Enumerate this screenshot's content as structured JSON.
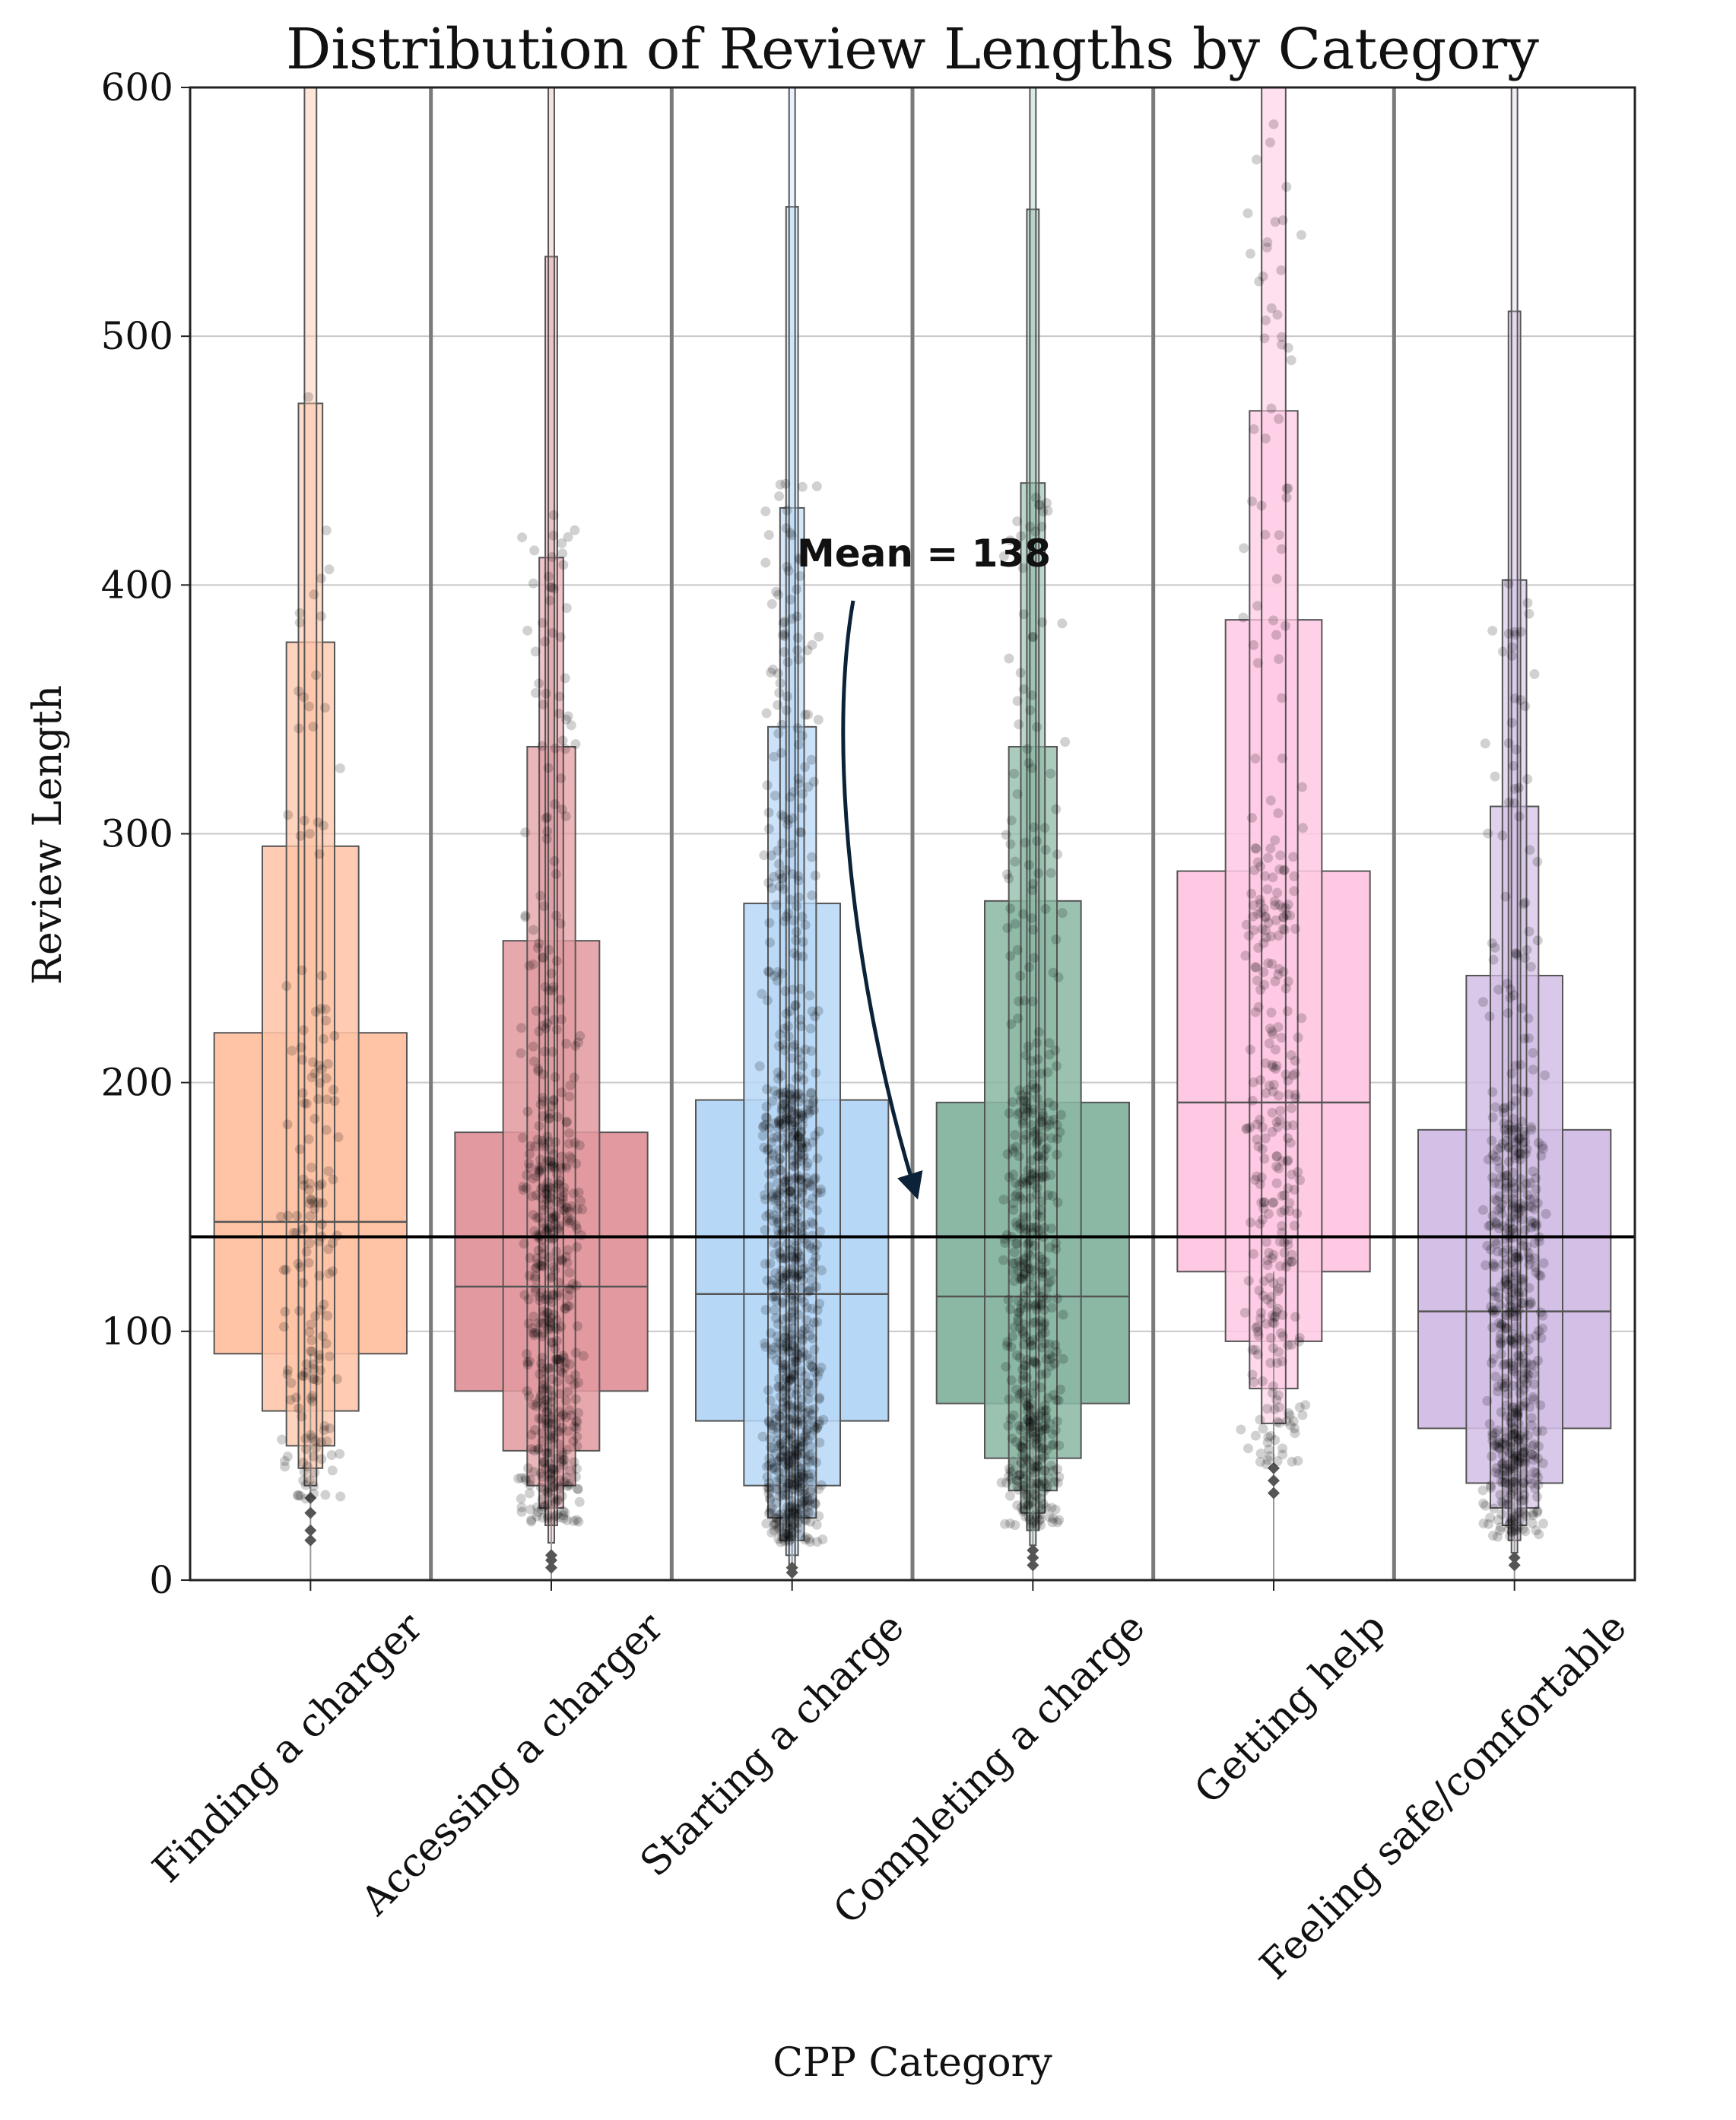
{
  "chart_data": {
    "type": "boxen",
    "title": "Distribution of Review Lengths by Category",
    "xlabel": "CPP Category",
    "ylabel": "Review Length",
    "ylim": [
      0,
      600
    ],
    "yticks": [
      0,
      100,
      200,
      300,
      400,
      500,
      600
    ],
    "grid": "horizontal",
    "categories": [
      "Finding a charger",
      "Accessing a charger",
      "Starting a charge",
      "Completing a charge",
      "Getting help",
      "Feeling safe/comfortable"
    ],
    "series": [
      {
        "name": "Finding a charger",
        "color": "#FFC4A6",
        "median": 144,
        "levels": [
          [
            91,
            220
          ],
          [
            68,
            295
          ],
          [
            54,
            377
          ],
          [
            45,
            473
          ],
          [
            38,
            600
          ]
        ],
        "point_count": 170,
        "outliers": [
          16,
          20,
          27,
          33
        ]
      },
      {
        "name": "Accessing a charger",
        "color": "#E29AA0",
        "median": 118,
        "levels": [
          [
            76,
            180
          ],
          [
            52,
            257
          ],
          [
            38,
            335
          ],
          [
            29,
            411
          ],
          [
            22,
            532
          ],
          [
            15,
            600
          ]
        ],
        "point_count": 520,
        "outliers": [
          5,
          8,
          10
        ]
      },
      {
        "name": "Starting a charge",
        "color": "#B7D7F7",
        "median": 115,
        "levels": [
          [
            64,
            193
          ],
          [
            38,
            272
          ],
          [
            25,
            343
          ],
          [
            16,
            431
          ],
          [
            10,
            552
          ],
          [
            6,
            600
          ]
        ],
        "point_count": 880,
        "outliers": [
          3,
          5
        ]
      },
      {
        "name": "Completing a charge",
        "color": "#8AB8A4",
        "median": 114,
        "levels": [
          [
            71,
            192
          ],
          [
            49,
            273
          ],
          [
            36,
            335
          ],
          [
            27,
            441
          ],
          [
            20,
            551
          ],
          [
            14,
            600
          ]
        ],
        "point_count": 520,
        "outliers": [
          6,
          9,
          12
        ]
      },
      {
        "name": "Getting help",
        "color": "#FFC9E4",
        "median": 192,
        "levels": [
          [
            124,
            285
          ],
          [
            96,
            386
          ],
          [
            77,
            470
          ],
          [
            63,
            600
          ]
        ],
        "point_count": 320,
        "outliers": [
          35,
          40,
          45
        ]
      },
      {
        "name": "Feeling safe/comfortable",
        "color": "#D4BFE6",
        "median": 108,
        "levels": [
          [
            61,
            181
          ],
          [
            39,
            243
          ],
          [
            29,
            311
          ],
          [
            22,
            402
          ],
          [
            16,
            510
          ],
          [
            11,
            600
          ]
        ],
        "point_count": 560,
        "outliers": [
          6,
          9
        ]
      }
    ],
    "reference_line": {
      "value": 138
    },
    "annotation": {
      "text": "Mean = 138",
      "target_value": 155
    }
  }
}
